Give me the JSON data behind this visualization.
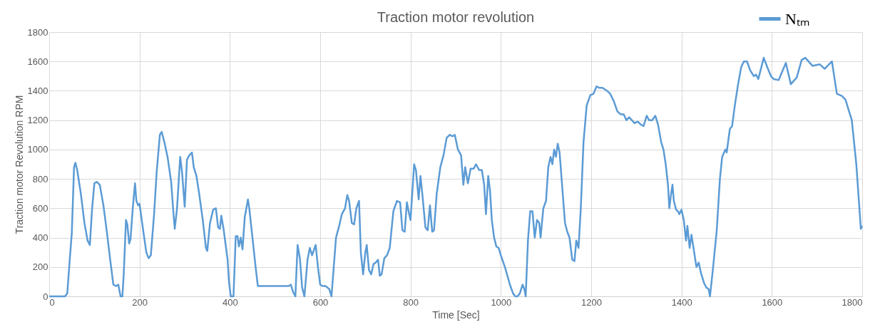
{
  "chart_data": {
    "type": "line",
    "title": "Traction motor revolution",
    "xlabel": "Time [Sec]",
    "ylabel": "Traction motor Revolution RPM",
    "xlim": [
      0,
      1800
    ],
    "xticks": [
      0,
      200,
      400,
      600,
      800,
      1000,
      1200,
      1400,
      1600,
      1800
    ],
    "ylim": [
      0,
      1800
    ],
    "yticks": [
      0,
      200,
      400,
      600,
      800,
      1000,
      1200,
      1400,
      1600,
      1800
    ],
    "grid": true,
    "legend": "top right",
    "marker": "none",
    "line_style": "solid",
    "series": [
      {
        "name": "Nₜₘ",
        "color": "#5b9bd5",
        "x": [
          0,
          35,
          40,
          45,
          50,
          55,
          58,
          62,
          70,
          78,
          85,
          90,
          95,
          100,
          105,
          112,
          120,
          128,
          135,
          142,
          148,
          153,
          158,
          162,
          165,
          170,
          173,
          177,
          180,
          185,
          190,
          193,
          197,
          200,
          208,
          215,
          220,
          225,
          232,
          238,
          245,
          249,
          255,
          262,
          270,
          275,
          278,
          283,
          290,
          294,
          300,
          305,
          310,
          316,
          320,
          326,
          332,
          340,
          347,
          350,
          356,
          363,
          369,
          374,
          378,
          381,
          386,
          395,
          398,
          402,
          408,
          413,
          417,
          420,
          424,
          428,
          433,
          440,
          443,
          450,
          457,
          462,
          470,
          530,
          535,
          540,
          545,
          550,
          555,
          560,
          565,
          572,
          577,
          582,
          590,
          595,
          600,
          605,
          612,
          620,
          625,
          630,
          635,
          642,
          648,
          655,
          660,
          664,
          670,
          675,
          680,
          686,
          690,
          695,
          700,
          703,
          708,
          713,
          718,
          723,
          728,
          732,
          736,
          742,
          748,
          754,
          762,
          770,
          777,
          782,
          787,
          792,
          797,
          800,
          808,
          812,
          818,
          822,
          826,
          833,
          838,
          843,
          848,
          852,
          858,
          866,
          873,
          880,
          887,
          893,
          898,
          905,
          912,
          917,
          921,
          927,
          933,
          940,
          945,
          952,
          958,
          963,
          967,
          972,
          976,
          980,
          985,
          990,
          995,
          1000,
          1010,
          1020,
          1027,
          1032,
          1037,
          1042,
          1048,
          1052,
          1055,
          1060,
          1065,
          1070,
          1075,
          1080,
          1085,
          1088,
          1094,
          1100,
          1105,
          1110,
          1114,
          1118,
          1122,
          1126,
          1130,
          1137,
          1142,
          1147,
          1152,
          1158,
          1163,
          1167,
          1172,
          1177,
          1183,
          1190,
          1198,
          1205,
          1212,
          1218,
          1225,
          1235,
          1242,
          1250,
          1258,
          1265,
          1272,
          1278,
          1284,
          1290,
          1296,
          1303,
          1310,
          1316,
          1323,
          1328,
          1335,
          1342,
          1348,
          1355,
          1360,
          1365,
          1370,
          1373,
          1377,
          1380,
          1383,
          1388,
          1392,
          1395,
          1400,
          1405,
          1410,
          1413,
          1418,
          1422,
          1428,
          1433,
          1438,
          1443,
          1450,
          1455,
          1460,
          1463,
          1470,
          1478,
          1485,
          1490,
          1497,
          1500,
          1507,
          1512,
          1518,
          1525,
          1532,
          1538,
          1545,
          1552,
          1560,
          1565,
          1570,
          1575,
          1582,
          1590,
          1598,
          1604,
          1615,
          1631,
          1642,
          1655,
          1666,
          1674,
          1690,
          1706,
          1717,
          1733,
          1744,
          1755,
          1763,
          1777,
          1787,
          1797,
          1800
        ],
        "values": [
          0,
          0,
          20,
          230,
          430,
          880,
          910,
          860,
          700,
          500,
          380,
          350,
          600,
          770,
          780,
          760,
          620,
          430,
          250,
          80,
          70,
          80,
          0,
          0,
          150,
          520,
          490,
          360,
          390,
          600,
          770,
          650,
          620,
          630,
          450,
          300,
          260,
          280,
          550,
          850,
          1100,
          1120,
          1050,
          950,
          780,
          570,
          460,
          600,
          950,
          850,
          610,
          930,
          960,
          980,
          880,
          820,
          700,
          520,
          330,
          310,
          500,
          590,
          600,
          470,
          460,
          550,
          460,
          250,
          100,
          0,
          0,
          410,
          410,
          340,
          400,
          320,
          540,
          660,
          600,
          400,
          200,
          70,
          70,
          70,
          80,
          30,
          0,
          350,
          260,
          60,
          0,
          250,
          330,
          280,
          350,
          200,
          80,
          70,
          70,
          50,
          0,
          200,
          400,
          480,
          560,
          600,
          690,
          650,
          500,
          490,
          600,
          650,
          300,
          150,
          300,
          350,
          180,
          150,
          220,
          230,
          250,
          140,
          150,
          260,
          280,
          330,
          580,
          650,
          640,
          450,
          440,
          640,
          560,
          520,
          900,
          860,
          660,
          820,
          700,
          470,
          450,
          620,
          440,
          450,
          700,
          880,
          960,
          1080,
          1100,
          1090,
          1100,
          1000,
          960,
          760,
          880,
          770,
          870,
          870,
          900,
          860,
          860,
          760,
          560,
          820,
          720,
          520,
          400,
          340,
          330,
          280,
          190,
          80,
          20,
          0,
          0,
          20,
          80,
          50,
          0,
          380,
          580,
          580,
          400,
          520,
          500,
          400,
          600,
          650,
          880,
          950,
          900,
          1000,
          950,
          1040,
          980,
          700,
          500,
          440,
          400,
          250,
          240,
          380,
          330,
          600,
          1050,
          1300,
          1370,
          1380,
          1430,
          1420,
          1420,
          1400,
          1380,
          1330,
          1260,
          1240,
          1240,
          1200,
          1220,
          1200,
          1180,
          1190,
          1170,
          1160,
          1230,
          1200,
          1200,
          1230,
          1170,
          1050,
          1000,
          900,
          760,
          600,
          700,
          760,
          650,
          590,
          580,
          560,
          590,
          520,
          380,
          480,
          330,
          420,
          300,
          200,
          230,
          160,
          90,
          60,
          50,
          0,
          200,
          450,
          800,
          950,
          1000,
          980,
          1140,
          1160,
          1300,
          1440,
          1560,
          1600,
          1600,
          1540,
          1500,
          1510,
          1480,
          1540,
          1625,
          1560,
          1500,
          1480,
          1473,
          1590,
          1445,
          1490,
          1610,
          1625,
          1570,
          1580,
          1550,
          1600,
          1380,
          1365,
          1340,
          1200,
          900,
          460,
          480
        ]
      }
    ]
  }
}
